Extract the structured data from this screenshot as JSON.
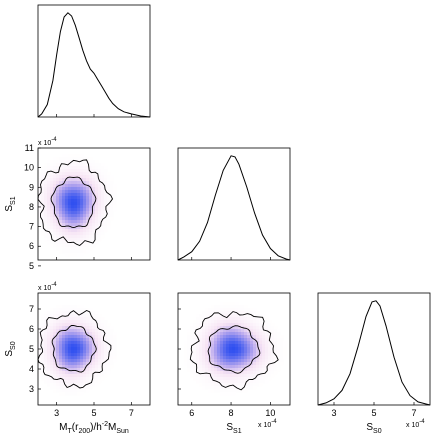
{
  "chart_data": {
    "type": "corner",
    "variables": [
      {
        "id": "MT",
        "label": "M",
        "label_sub": "T",
        "label_mid": "(r",
        "label_sub2": "200",
        "label_tail": ")/h",
        "label_sup": "-2",
        "label_end": "M",
        "label_sub3": "Sun"
      },
      {
        "id": "SS1",
        "label": "S",
        "label_sub": "S1",
        "multiplier": "x 10",
        "multiplier_exp": "-4"
      },
      {
        "id": "SS0",
        "label": "S",
        "label_sub": "S0",
        "multiplier": "x 10",
        "multiplier_exp": "-4"
      }
    ],
    "axes": {
      "MT": {
        "range": [
          2,
          8
        ],
        "ticks": [
          3,
          5,
          7
        ],
        "tick_labels": [
          "3",
          "5",
          "7"
        ]
      },
      "SS1": {
        "range": [
          5.3,
          11.0
        ],
        "ticks": [
          6,
          8,
          10
        ],
        "tick_labels": [
          "6",
          "8",
          "10"
        ],
        "y_ticks": [
          5,
          6,
          7,
          8,
          9,
          10,
          11
        ],
        "y_tick_labels": [
          "5",
          "6",
          "7",
          "8",
          "9",
          "10",
          "11"
        ]
      },
      "SS0": {
        "range": [
          2.2,
          7.8
        ],
        "ticks": [
          3,
          5,
          7
        ],
        "tick_labels": [
          "3",
          "5",
          "7"
        ],
        "y_ticks": [
          3,
          4,
          5,
          6,
          7
        ],
        "y_tick_labels": [
          "3",
          "4",
          "5",
          "6",
          "7"
        ]
      }
    },
    "marginals": [
      {
        "variable": "MT",
        "x": [
          2.0,
          2.2,
          2.5,
          2.8,
          3.0,
          3.2,
          3.4,
          3.6,
          3.8,
          4.0,
          4.2,
          4.4,
          4.6,
          4.8,
          5.0,
          5.2,
          5.4,
          5.6,
          5.8,
          6.0,
          6.3,
          6.6,
          7.0,
          7.5,
          8.0
        ],
        "density": [
          0.0,
          0.03,
          0.12,
          0.35,
          0.6,
          0.82,
          0.96,
          1.0,
          0.97,
          0.88,
          0.76,
          0.64,
          0.54,
          0.46,
          0.42,
          0.36,
          0.3,
          0.24,
          0.18,
          0.13,
          0.08,
          0.05,
          0.03,
          0.01,
          0.0
        ]
      },
      {
        "variable": "SS1",
        "x": [
          5.3,
          5.6,
          6.0,
          6.4,
          6.8,
          7.2,
          7.6,
          8.0,
          8.2,
          8.4,
          8.8,
          9.2,
          9.6,
          10.0,
          10.4,
          10.8,
          11.0
        ],
        "density": [
          0.0,
          0.03,
          0.08,
          0.18,
          0.36,
          0.62,
          0.86,
          1.0,
          0.99,
          0.92,
          0.7,
          0.45,
          0.24,
          0.11,
          0.04,
          0.01,
          0.0
        ]
      },
      {
        "variable": "SS0",
        "x": [
          2.2,
          2.6,
          3.0,
          3.4,
          3.8,
          4.2,
          4.6,
          4.9,
          5.1,
          5.3,
          5.6,
          6.0,
          6.4,
          6.8,
          7.2,
          7.6,
          7.8
        ],
        "density": [
          0.0,
          0.02,
          0.06,
          0.14,
          0.3,
          0.56,
          0.85,
          0.99,
          1.0,
          0.95,
          0.76,
          0.46,
          0.22,
          0.09,
          0.03,
          0.01,
          0.0
        ]
      }
    ],
    "joint": [
      {
        "x_var": "MT",
        "y_var": "SS1",
        "peak": [
          3.9,
          8.2
        ],
        "spread": [
          0.75,
          0.85
        ],
        "levels": [
          "68%",
          "95%"
        ]
      },
      {
        "x_var": "MT",
        "y_var": "SS0",
        "peak": [
          3.9,
          5.0
        ],
        "spread": [
          0.75,
          0.75
        ],
        "levels": [
          "68%",
          "95%"
        ]
      },
      {
        "x_var": "SS1",
        "y_var": "SS0",
        "peak": [
          8.1,
          5.0
        ],
        "spread": [
          0.85,
          0.75
        ],
        "levels": [
          "68%",
          "95%"
        ]
      }
    ],
    "colors": {
      "peak": "#2f4ff0",
      "mid": "#b9a8ee",
      "low": "#f6e3f4",
      "line": "#000000",
      "background": "#ffffff"
    }
  }
}
